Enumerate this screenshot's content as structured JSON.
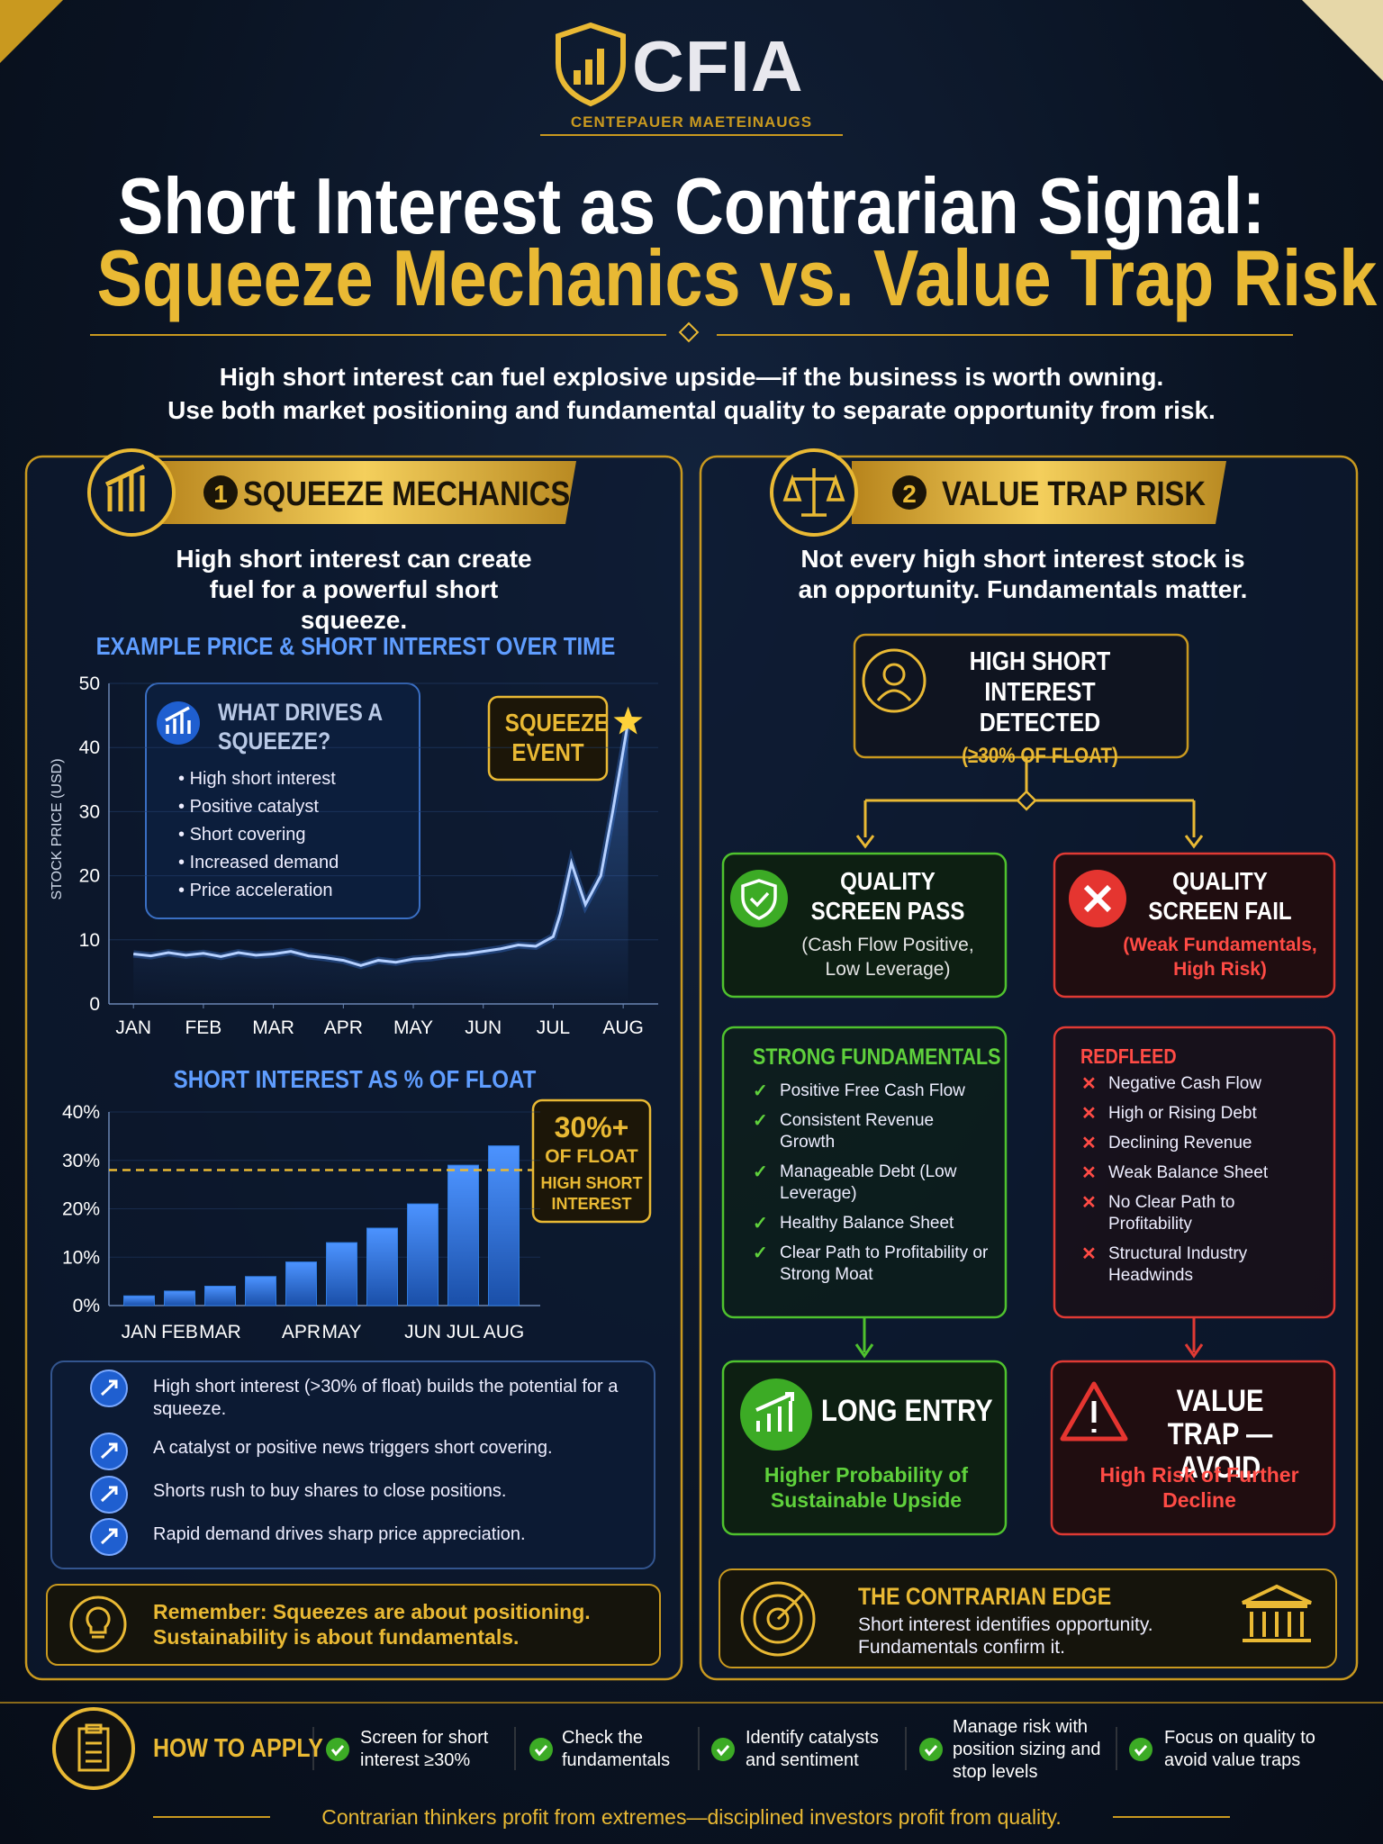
{
  "header": {
    "logo": "CFIA",
    "tagline": "CENTEPAUER MAETEINAUGS",
    "title": "Short Interest as Contrarian Signal:",
    "title_highlight": "Squeeze Mechanics vs. Value Trap Risk",
    "subtitle": [
      "High short interest can fuel explosive upside—if the business is worth owning.",
      "Use both market positioning and fundamental quality to separate opportunity from risk."
    ]
  },
  "squeeze": {
    "number": "1",
    "title": "SQUEEZE MECHANICS",
    "intro": "High short interest can create fuel for a powerful short squeeze.",
    "drivers": {
      "title": "WHAT DRIVES A SQUEEZE?",
      "items": [
        "High short interest",
        "Positive catalyst",
        "Short covering",
        "Increased demand",
        "Price acceleration"
      ]
    },
    "event": "SQUEEZE EVENT",
    "float_note": {
      "value": "30%+",
      "label": "OF FLOAT",
      "text": "HIGH SHORT INTEREST"
    },
    "steps": [
      "High short interest (>30% of float) builds the potential for a squeeze.",
      "A catalyst or positive news triggers short covering.",
      "Shorts rush to buy shares to close positions.",
      "Rapid demand drives sharp price appreciation."
    ],
    "reminder": "Remember: Squeezes are about positioning. Sustainability is about fundamentals."
  },
  "chart_data": [
    {
      "type": "line",
      "title": "EXAMPLE PRICE & SHORT INTEREST OVER TIME",
      "y_label": "STOCK PRICE (USD)",
      "x": [
        0,
        0.25,
        0.5,
        0.75,
        1,
        1.25,
        1.5,
        1.75,
        2,
        2.25,
        2.5,
        2.75,
        3,
        3.25,
        3.5,
        3.75,
        4,
        4.25,
        4.5,
        4.75,
        5,
        5.25,
        5.5,
        5.75,
        6,
        6.1,
        6.26,
        6.46,
        6.68,
        6.85,
        7.07
      ],
      "values": [
        7.8,
        7.5,
        8,
        7.6,
        7.9,
        7.4,
        8,
        7.6,
        7.8,
        8.2,
        7.5,
        7.2,
        6.8,
        6,
        6.8,
        6.5,
        7,
        7.2,
        7.6,
        7.8,
        8.2,
        8.6,
        9.2,
        9,
        10.5,
        14,
        22,
        15.5,
        20,
        30,
        44
      ],
      "color": "#b5d0ff",
      "xlim": [
        -0.35,
        7.5
      ],
      "xticks": [
        {
          "value": 0,
          "label": "JAN"
        },
        {
          "value": 1,
          "label": "FEB"
        },
        {
          "value": 2,
          "label": "MAR"
        },
        {
          "value": 3,
          "label": "APR"
        },
        {
          "value": 4,
          "label": "MAY"
        },
        {
          "value": 5,
          "label": "JUN"
        },
        {
          "value": 6,
          "label": "JUL"
        },
        {
          "value": 7,
          "label": "AUG"
        }
      ],
      "ylim": [
        0,
        50
      ],
      "yticks": [
        0,
        10,
        20,
        30,
        40,
        50
      ],
      "grid": true
    },
    {
      "type": "bar",
      "title": "SHORT INTEREST AS % OF FLOAT",
      "categories": [
        "JAN",
        "FEB",
        "MAR",
        null,
        "APR",
        "MAY",
        null,
        "JUN",
        "JUL",
        "AUG"
      ],
      "values": [
        2,
        3,
        4,
        6,
        9,
        13,
        16,
        21,
        29,
        33
      ],
      "color": "#2f7be0",
      "ylim": [
        0,
        40
      ],
      "yticks": [
        {
          "value": 0,
          "label": "0%"
        },
        {
          "value": 10,
          "label": "10%"
        },
        {
          "value": 20,
          "label": "20%"
        },
        {
          "value": 30,
          "label": "30%"
        },
        {
          "value": 40,
          "label": "40%"
        }
      ],
      "reference_line": 28,
      "grid": true
    }
  ],
  "value_trap": {
    "number": "2",
    "title": "VALUE TRAP RISK",
    "intro": "Not every high short interest stock is an opportunity. Fundamentals matter.",
    "detect": {
      "title": "HIGH SHORT INTEREST DETECTED",
      "note": "(≥30% OF FLOAT)"
    },
    "pass": {
      "title": "QUALITY SCREEN PASS",
      "note": "(Cash Flow Positive, Low Leverage)"
    },
    "fail": {
      "title": "QUALITY SCREEN FAIL",
      "note": "(Weak Fundamentals, High Risk)"
    },
    "strong": {
      "title": "STRONG FUNDAMENTALS",
      "items": [
        "Positive Free Cash Flow",
        "Consistent Revenue Growth",
        "Manageable Debt (Low Leverage)",
        "Healthy Balance Sheet",
        "Clear Path to Profitability or Strong Moat"
      ]
    },
    "red": {
      "title": "REDFLEED",
      "items": [
        "Negative Cash Flow",
        "High or Rising Debt",
        "Declining Revenue",
        "Weak Balance Sheet",
        "No Clear Path to Profitability",
        "Structural Industry Headwinds"
      ]
    },
    "long": {
      "title": "LONG ENTRY",
      "note": "Higher Probability of Sustainable Upside"
    },
    "avoid": {
      "title": "VALUE TRAP — AVOID",
      "note": "High Risk of Further Decline"
    },
    "edge": {
      "title": "THE CONTRARIAN EDGE",
      "lines": [
        "Short interest identifies opportunity.",
        "Fundamentals confirm it."
      ]
    }
  },
  "footer": {
    "title": "HOW TO APPLY",
    "steps": [
      "Screen for short interest ≥30%",
      "Check the fundamentals",
      "Identify catalysts and sentiment",
      "Manage risk with position sizing and stop levels",
      "Focus on quality to avoid value traps"
    ],
    "tagline": "Contrarian thinkers profit from extremes—disciplined investors profit from quality."
  }
}
